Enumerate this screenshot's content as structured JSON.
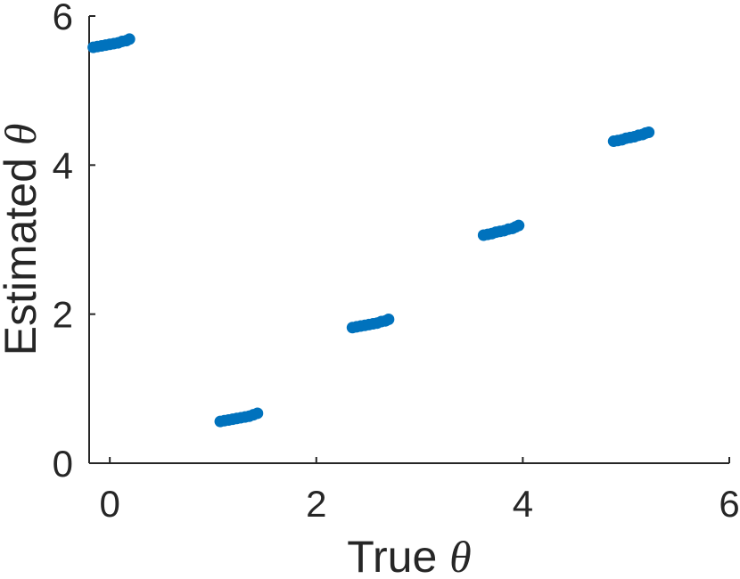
{
  "chart_data": {
    "type": "scatter",
    "title": "",
    "xlabel": "True θ",
    "xlabel_parts": {
      "text": "True ",
      "symbol": "θ"
    },
    "ylabel": "Estimated θ",
    "ylabel_parts": {
      "text": "Estimated ",
      "symbol": "θ"
    },
    "xlim": [
      -0.2,
      6
    ],
    "ylim": [
      0,
      6
    ],
    "xticks": [
      0,
      2,
      4,
      6
    ],
    "yticks": [
      0,
      2,
      4,
      6
    ],
    "xtick_labels": [
      "0",
      "2",
      "4",
      "6"
    ],
    "ytick_labels": [
      "0",
      "2",
      "4",
      "6"
    ],
    "grid": false,
    "marker_color": "#0072BD",
    "series": [
      {
        "values_note": "",
        "points": [
          [
            -0.16,
            5.58
          ],
          [
            -0.12,
            5.59
          ],
          [
            -0.08,
            5.6
          ],
          [
            -0.04,
            5.61
          ],
          [
            0.0,
            5.62
          ],
          [
            0.04,
            5.63
          ],
          [
            0.08,
            5.64
          ],
          [
            0.12,
            5.66
          ],
          [
            0.16,
            5.67
          ],
          [
            0.19,
            5.69
          ],
          [
            1.07,
            0.56
          ],
          [
            1.11,
            0.57
          ],
          [
            1.15,
            0.58
          ],
          [
            1.19,
            0.59
          ],
          [
            1.23,
            0.6
          ],
          [
            1.27,
            0.61
          ],
          [
            1.31,
            0.62
          ],
          [
            1.35,
            0.63
          ],
          [
            1.39,
            0.65
          ],
          [
            1.43,
            0.67
          ],
          [
            2.35,
            1.82
          ],
          [
            2.39,
            1.83
          ],
          [
            2.43,
            1.84
          ],
          [
            2.47,
            1.85
          ],
          [
            2.51,
            1.86
          ],
          [
            2.55,
            1.87
          ],
          [
            2.59,
            1.88
          ],
          [
            2.63,
            1.9
          ],
          [
            2.67,
            1.91
          ],
          [
            2.7,
            1.93
          ],
          [
            3.62,
            3.06
          ],
          [
            3.66,
            3.07
          ],
          [
            3.7,
            3.08
          ],
          [
            3.74,
            3.1
          ],
          [
            3.78,
            3.11
          ],
          [
            3.82,
            3.12
          ],
          [
            3.86,
            3.14
          ],
          [
            3.9,
            3.15
          ],
          [
            3.93,
            3.17
          ],
          [
            3.96,
            3.19
          ],
          [
            4.88,
            4.32
          ],
          [
            4.92,
            4.33
          ],
          [
            4.96,
            4.34
          ],
          [
            5.0,
            4.36
          ],
          [
            5.04,
            4.37
          ],
          [
            5.08,
            4.38
          ],
          [
            5.12,
            4.4
          ],
          [
            5.16,
            4.41
          ],
          [
            5.19,
            4.43
          ],
          [
            5.22,
            4.44
          ]
        ]
      }
    ]
  }
}
